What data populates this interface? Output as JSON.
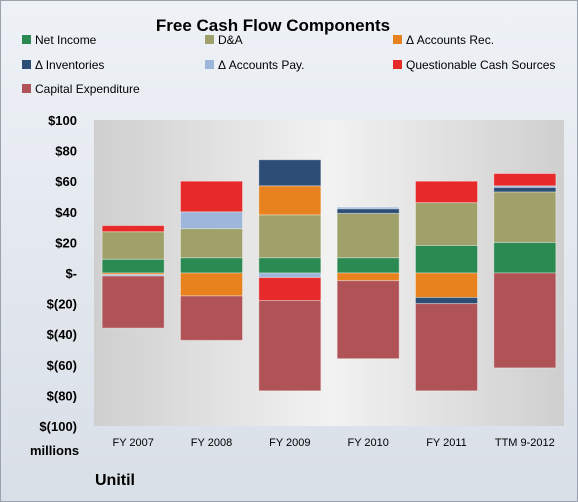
{
  "chart_data": {
    "type": "bar",
    "stacked": true,
    "title": "Free Cash Flow Components",
    "units": "millions",
    "brand": "Unitil",
    "categories": [
      "FY 2007",
      "FY 2008",
      "FY 2009",
      "FY 2010",
      "FY 2011",
      "TTM 9-2012"
    ],
    "ylim": [
      -100,
      100
    ],
    "yticks": [
      100,
      80,
      60,
      40,
      20,
      0,
      -20,
      -40,
      -60,
      -80,
      -100
    ],
    "ytick_labels": [
      "$100",
      "$80",
      "$60",
      "$40",
      "$20",
      "$-",
      "$(20)",
      "$(40)",
      "$(60)",
      "$(80)",
      "$(100)"
    ],
    "legend_position": "top",
    "grid": false,
    "series": [
      {
        "name": "Net Income",
        "color": "#2a8a52",
        "values": [
          9,
          10,
          10,
          10,
          18,
          20
        ]
      },
      {
        "name": "D&A",
        "color": "#a0a06a",
        "values": [
          18,
          19,
          28,
          29,
          28,
          33
        ]
      },
      {
        "name": "Δ Accounts Rec.",
        "color": "#e8821e",
        "values": [
          -1,
          -15,
          19,
          -5,
          -16,
          0
        ]
      },
      {
        "name": "Δ Inventories",
        "color": "#2c4d75",
        "values": [
          0,
          0,
          17,
          3,
          -4,
          3
        ]
      },
      {
        "name": "Δ Accounts Pay.",
        "color": "#9db6da",
        "values": [
          -1,
          11,
          -3,
          1,
          0,
          1
        ]
      },
      {
        "name": "Questionable Cash Sources",
        "color": "#e62a2a",
        "values": [
          4,
          20,
          -15,
          0,
          14,
          8
        ]
      },
      {
        "name": "Capital Expenditure",
        "color": "#b05357",
        "values": [
          -34,
          -29,
          -59,
          -51,
          -57,
          -62
        ]
      }
    ]
  }
}
